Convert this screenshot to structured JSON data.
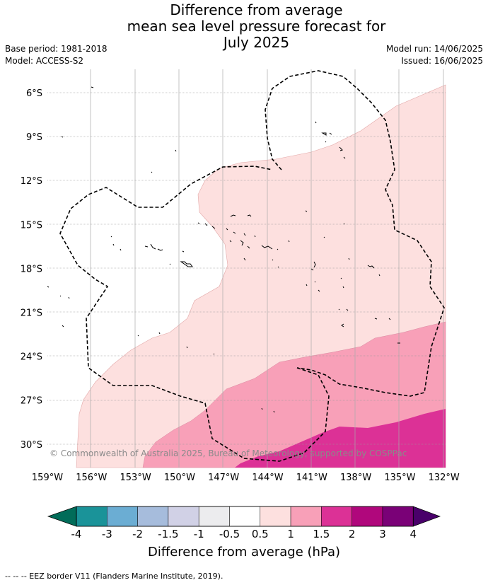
{
  "title_lines": [
    "Difference from average",
    "mean sea level pressure forecast for",
    "July 2025"
  ],
  "base_period": "Base period: 1981-2018",
  "model": "Model: ACCESS-S2",
  "model_run": "Model run: 14/06/2025",
  "issued": "Issued: 16/06/2025",
  "copyright": "© Commonwealth of Australia 2025, Bureau of Meteorology, supported by COSPPac",
  "lat_labels": [
    "6°S",
    "9°S",
    "12°S",
    "15°S",
    "18°S",
    "21°S",
    "24°S",
    "27°S",
    "30°S"
  ],
  "lon_labels": [
    "159°W",
    "156°W",
    "153°W",
    "150°W",
    "147°W",
    "144°W",
    "141°W",
    "138°W",
    "135°W",
    "132°W"
  ],
  "colorbar": {
    "title": "Difference from average (hPa)",
    "tick_labels": [
      "-4",
      "-3",
      "-2",
      "-1.5",
      "-1",
      "-0.5",
      "0.5",
      "1",
      "1.5",
      "2",
      "3",
      "4"
    ],
    "colors": [
      "#1a9399",
      "#6badd3",
      "#a6bcdc",
      "#d1d1e6",
      "#ececee",
      "#ffffff",
      "#fde0df",
      "#f8a0b8",
      "#dc3196",
      "#b0077c",
      "#7a0177"
    ],
    "under_color": "#016c59",
    "over_color": "#49006a"
  },
  "legend_note": "-- -- -- EEZ border V11 (Flanders Marine Institute, 2019)."
}
